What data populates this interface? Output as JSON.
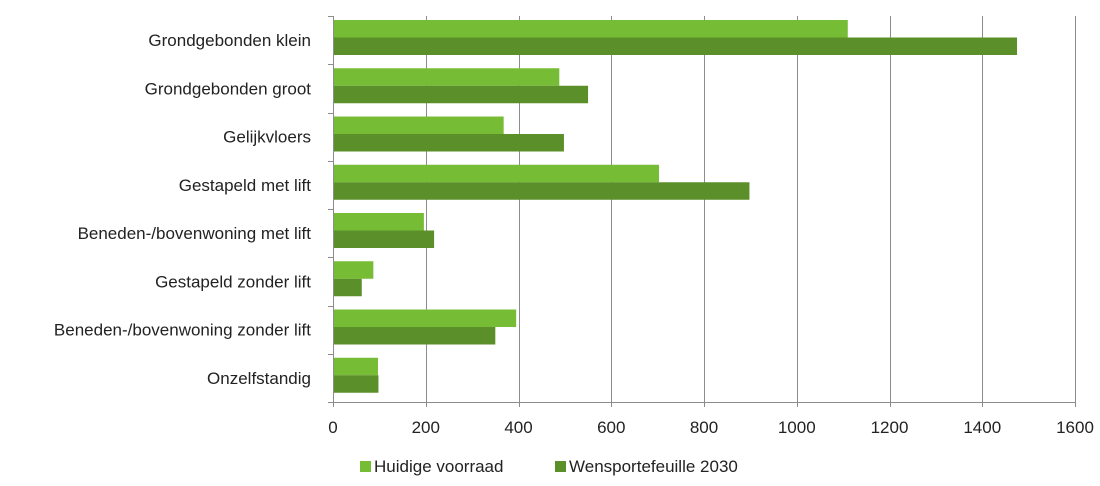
{
  "chart_data": {
    "type": "bar",
    "orientation": "horizontal",
    "categories": [
      "Grondgebonden klein",
      "Grondgebonden groot",
      "Gelijkvloers",
      "Gestapeld met lift",
      "Beneden-/bovenwoning met lift",
      "Gestapeld zonder lift",
      "Beneden-/bovenwoning zonder lift",
      "Onzelfstandig"
    ],
    "series": [
      {
        "name": "Huidige voorraad",
        "color": "#77bc35",
        "values": [
          1110,
          488,
          368,
          703,
          196,
          87,
          395,
          97
        ]
      },
      {
        "name": "Wensportefeuille 2030",
        "color": "#5b8f29",
        "values": [
          1475,
          550,
          498,
          898,
          218,
          62,
          350,
          98
        ]
      }
    ],
    "xlim": [
      0,
      1600
    ],
    "xticks": [
      "0",
      "200",
      "400",
      "600",
      "800",
      "1000",
      "1200",
      "1400",
      "1600"
    ],
    "grid": "vertical",
    "legend_position": "bottom"
  }
}
